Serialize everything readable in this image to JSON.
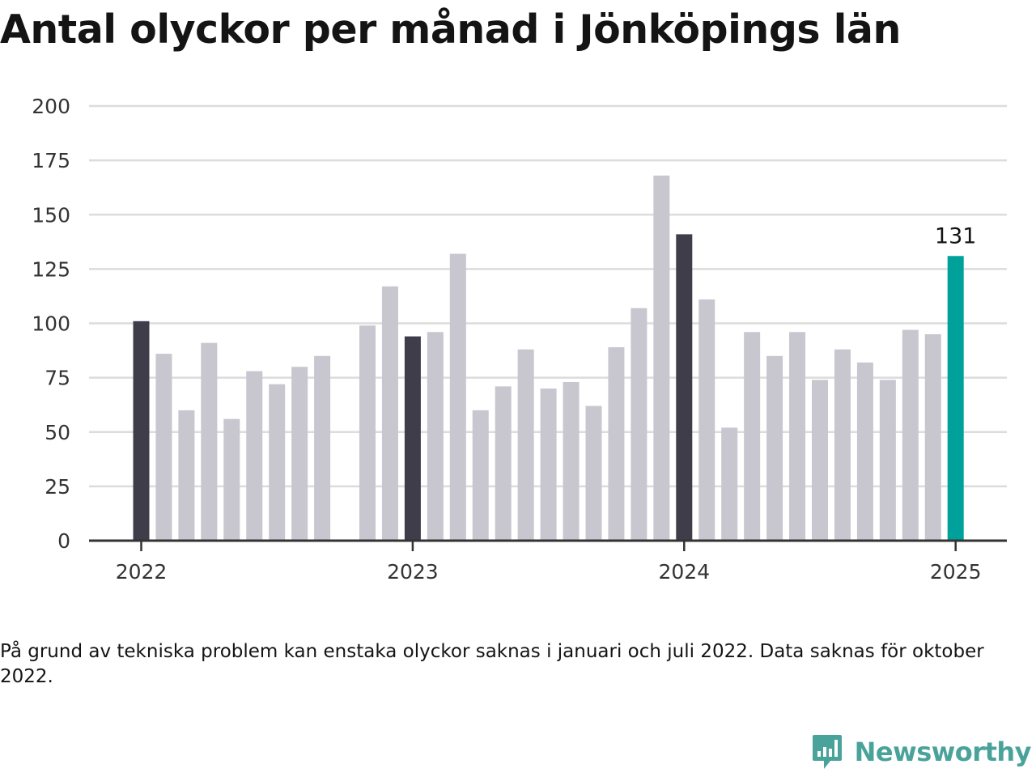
{
  "title": "Antal olyckor per månad i Jönköpings län",
  "footnote": "På grund av tekniska problem kan enstaka olyckor saknas i januari och juli 2022. Data saknas för oktober 2022.",
  "brand": {
    "name": "Newsworthy",
    "icon": "bar-chart-speech-bubble-icon"
  },
  "colors": {
    "default_bar": "#c8c7cf",
    "january_bar": "#3f3d4a",
    "latest_bar": "#00a19a",
    "grid": "#dcdcdc",
    "axis": "#333333"
  },
  "chart_data": {
    "type": "bar",
    "title": "Antal olyckor per månad i Jönköpings län",
    "xlabel": "",
    "ylabel": "",
    "ylim": [
      0,
      200
    ],
    "yticks": [
      0,
      25,
      50,
      75,
      100,
      125,
      150,
      175,
      200
    ],
    "xtick_labels": [
      {
        "label": "2022",
        "month": "2022-01"
      },
      {
        "label": "2023",
        "month": "2023-01"
      },
      {
        "label": "2024",
        "month": "2024-01"
      },
      {
        "label": "2025",
        "month": "2025-01"
      }
    ],
    "grid": true,
    "highlight": {
      "month": "2025-01",
      "label": "131"
    },
    "bars": [
      {
        "month": "2022-01",
        "value": 101
      },
      {
        "month": "2022-02",
        "value": 86
      },
      {
        "month": "2022-03",
        "value": 60
      },
      {
        "month": "2022-04",
        "value": 91
      },
      {
        "month": "2022-05",
        "value": 56
      },
      {
        "month": "2022-06",
        "value": 78
      },
      {
        "month": "2022-07",
        "value": 72
      },
      {
        "month": "2022-08",
        "value": 80
      },
      {
        "month": "2022-09",
        "value": 85
      },
      {
        "month": "2022-10",
        "value": null
      },
      {
        "month": "2022-11",
        "value": 99
      },
      {
        "month": "2022-12",
        "value": 117
      },
      {
        "month": "2023-01",
        "value": 94
      },
      {
        "month": "2023-02",
        "value": 96
      },
      {
        "month": "2023-03",
        "value": 132
      },
      {
        "month": "2023-04",
        "value": 60
      },
      {
        "month": "2023-05",
        "value": 71
      },
      {
        "month": "2023-06",
        "value": 88
      },
      {
        "month": "2023-07",
        "value": 70
      },
      {
        "month": "2023-08",
        "value": 73
      },
      {
        "month": "2023-09",
        "value": 62
      },
      {
        "month": "2023-10",
        "value": 89
      },
      {
        "month": "2023-11",
        "value": 107
      },
      {
        "month": "2023-12",
        "value": 168
      },
      {
        "month": "2024-01",
        "value": 141
      },
      {
        "month": "2024-02",
        "value": 111
      },
      {
        "month": "2024-03",
        "value": 52
      },
      {
        "month": "2024-04",
        "value": 96
      },
      {
        "month": "2024-05",
        "value": 85
      },
      {
        "month": "2024-06",
        "value": 96
      },
      {
        "month": "2024-07",
        "value": 74
      },
      {
        "month": "2024-08",
        "value": 88
      },
      {
        "month": "2024-09",
        "value": 82
      },
      {
        "month": "2024-10",
        "value": 74
      },
      {
        "month": "2024-11",
        "value": 97
      },
      {
        "month": "2024-12",
        "value": 95
      },
      {
        "month": "2025-01",
        "value": 131
      }
    ]
  }
}
